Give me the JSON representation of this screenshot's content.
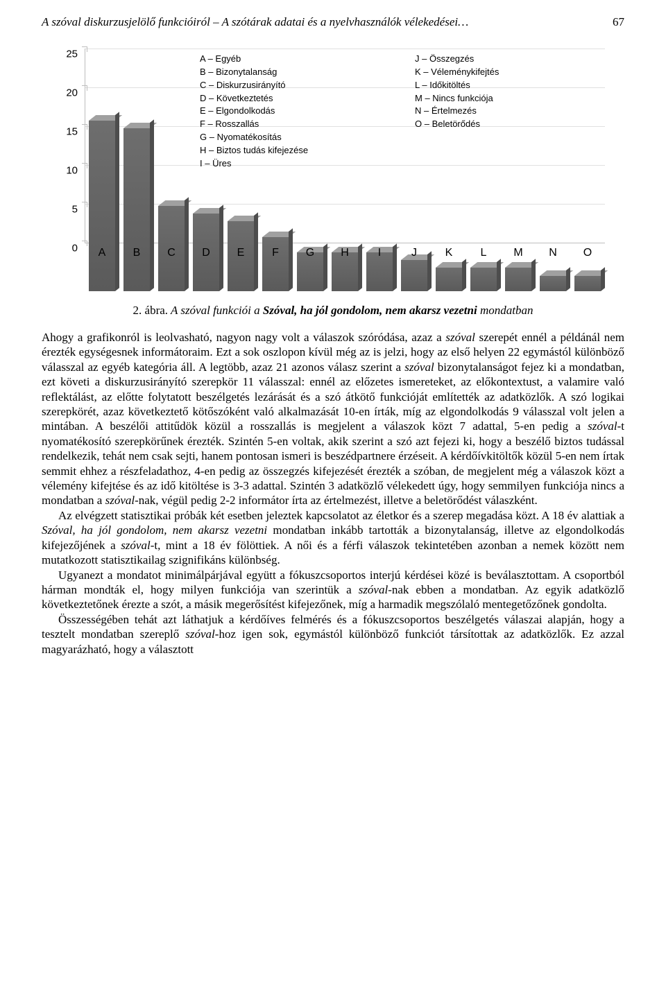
{
  "header": {
    "title": "A szóval diskurzusjelölő funkcióiról – A szótárak adatai és a nyelvhasználók vélekedései…",
    "page_number": "67"
  },
  "chart": {
    "type": "bar",
    "background_color": "#ffffff",
    "grid_color": "#e0e0e0",
    "axis_color": "#bdbdbd",
    "bar_fill": "#6e6e6e",
    "bar_top": "#a0a0a0",
    "bar_side": "#4d4d4d",
    "label_font": "Arial",
    "label_fontsize": 15,
    "ylim": [
      0,
      25
    ],
    "ytick_step": 5,
    "yticks": [
      0,
      5,
      10,
      15,
      20,
      25
    ],
    "bar_width": 0.76,
    "categories": [
      "A",
      "B",
      "C",
      "D",
      "E",
      "F",
      "G",
      "H",
      "I",
      "J",
      "K",
      "L",
      "M",
      "N",
      "O"
    ],
    "values": [
      22,
      21,
      11,
      10,
      9,
      7,
      5,
      5,
      5,
      4,
      3,
      3,
      3,
      2,
      2
    ],
    "legend_left": [
      "A – Egyéb",
      "B – Bizonytalanság",
      "C – Diskurzusirányító",
      "D – Következtetés",
      "E – Elgondolkodás",
      "F – Rosszallás",
      "G – Nyomatékosítás",
      "H – Biztos tudás kifejezése",
      "I – Üres"
    ],
    "legend_right": [
      "J – Összegzés",
      "K – Véleménykifejtés",
      "L – Időkitöltés",
      "M – Nincs funkciója",
      "N – Értelmezés",
      "O – Beletörődés"
    ]
  },
  "caption": {
    "number": "2. ábra.",
    "pre": " A ",
    "word": "szóval",
    "mid": " funkciói a ",
    "bold_sentence": "Szóval, ha jól gondolom, nem akarsz vezetni",
    "post": " mondatban"
  },
  "paragraphs": {
    "p1_a": "Ahogy a grafikonról is leolvasható, nagyon nagy volt a válaszok szóródása, azaz a ",
    "p1_ital1": "szóval",
    "p1_b": " szerepét ennél a példánál nem érezték egységesnek informátoraim. Ezt a sok oszlopon kívül még az is jelzi, hogy az első helyen 22 egymástól különböző válasszal az egyéb kategória áll. A legtöbb, azaz 21 azonos válasz szerint a ",
    "p1_ital2": "szóval",
    "p1_c": " bizonytalanságot fejez ki a mondatban, ezt követi a diskurzusirányító szerepkör 11 válasszal: ennél az előzetes ismereteket, az előkontextust, a valamire való reflektálást, az előtte folytatott beszélgetés lezárását és a szó átkötő funkcióját említették az adatközlők. A szó logikai szerepkörét, azaz következtető kötőszóként való alkalmazását 10-en írták, míg az elgondolkodás 9 válasszal volt jelen a mintában. A beszélői attitűdök közül a rosszallás is megjelent a válaszok közt 7 adattal, 5-en pedig a ",
    "p1_ital3": "szóval",
    "p1_d": "-t nyomatékosító szerepkörűnek érezték. Szintén 5-en voltak, akik szerint a szó azt fejezi ki, hogy a beszélő biztos tudással rendelkezik, tehát nem csak sejti, hanem pontosan ismeri is beszédpartnere érzéseit. A kérdőívkitöltők közül 5-en nem írtak semmit ehhez a részfeladathoz, 4-en pedig az összegzés kifejezését érezték a szóban, de megjelent még a válaszok közt a vélemény kifejtése és az idő kitöltése is 3-3 adattal. Szintén 3 adatközlő vélekedett úgy, hogy semmilyen funkciója nincs a mondatban a ",
    "p1_ital4": "szóval",
    "p1_e": "-nak, végül pedig 2-2 informátor írta az értelmezést, illetve a beletörődést válaszként.",
    "p2_a": "Az elvégzett statisztikai próbák két esetben jeleztek kapcsolatot az életkor és a szerep megadása közt. A 18 év alattiak a ",
    "p2_ital1": "Szóval, ha jól gondolom, nem akarsz vezetni",
    "p2_b": " mondatban inkább tartották a bizonytalanság, illetve az elgondolkodás kifejezőjének a ",
    "p2_ital2": "szóval",
    "p2_c": "-t, mint a 18 év fölöttiek. A női és a férfi válaszok tekintetében azonban a nemek között nem mutatkozott statisztikailag szignifikáns különbség.",
    "p3_a": "Ugyanezt a mondatot minimálpárjával együtt a fókuszcsoportos interjú kérdései közé is beválasztottam. A csoportból hárman mondták el, hogy milyen funkciója van szerintük a ",
    "p3_ital1": "szóval",
    "p3_b": "-nak ebben a mondatban. Az egyik adatközlő következtetőnek érezte a szót, a másik megerősítést kifejezőnek, míg a harmadik megszólaló mentegetőzőnek gondolta.",
    "p4_a": "Összességében tehát azt láthatjuk a kérdőíves felmérés és a fókuszcsoportos beszélgetés válaszai alapján, hogy a tesztelt mondatban szereplő ",
    "p4_ital1": "szóval",
    "p4_b": "-hoz igen sok, egymástól különböző funkciót társítottak az adatközlők. Ez azzal magyarázható, hogy a választott"
  }
}
